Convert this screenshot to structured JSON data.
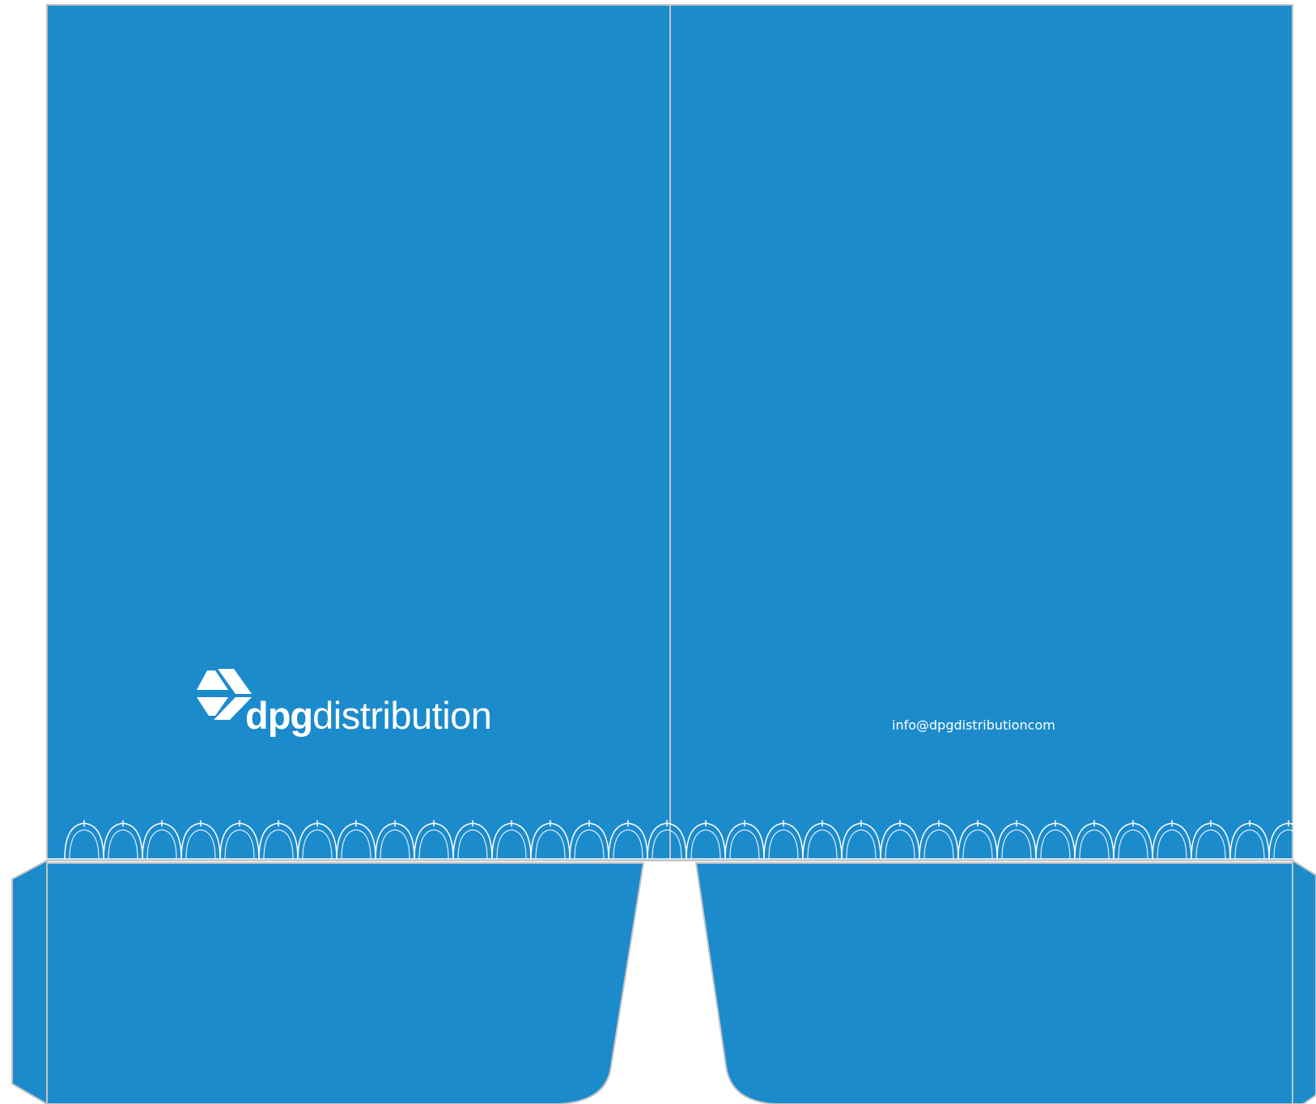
{
  "folder": {
    "panel_color": "#1C8BCC",
    "line_color": "#C4C4C4",
    "scallop_color": "#FFFFFF",
    "background_color": "#FFFFFF"
  },
  "front_panel": {
    "logo": {
      "icon": "dpg-arrow-box-icon",
      "brand_bold": "dpg",
      "brand_light": "distribution"
    }
  },
  "back_panel": {
    "email": "info@dpgdistributioncom"
  }
}
